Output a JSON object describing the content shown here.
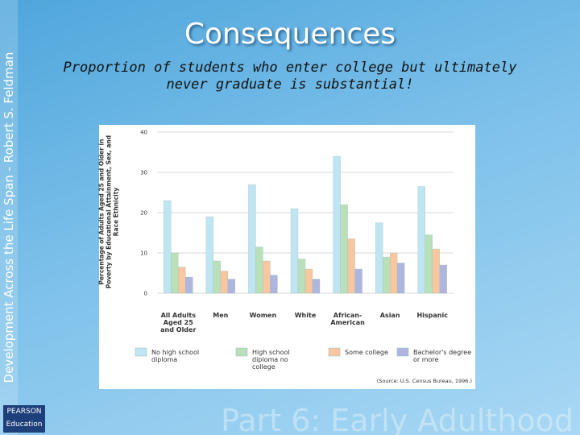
{
  "slide": {
    "title": "Consequences",
    "subtitle": "Proportion of students who enter college but ultimately never graduate is substantial!",
    "side_text": "Development Across the Life Span - Robert S. Feldman",
    "footer": "Part 6: Early Adulthood",
    "logo": [
      "PEARSON",
      "Education"
    ]
  },
  "chart_data": {
    "type": "bar",
    "y_label": "Percentage of Adults Aged 25 and Older in Poverty by Educational Attainment, Sex, and Race Ethnicity",
    "categories": [
      "All Adults Aged 25 and Older",
      "Men",
      "Women",
      "White",
      "African-American",
      "Asian",
      "Hispanic"
    ],
    "series": [
      {
        "name": "No high school diploma",
        "color": "#bfe4f2",
        "values": [
          23,
          19,
          27,
          21,
          34,
          17.5,
          26.5
        ]
      },
      {
        "name": "High school diploma no college",
        "color": "#b9e0b9",
        "values": [
          10,
          8,
          11.5,
          8.5,
          22,
          9,
          14.5
        ]
      },
      {
        "name": "Some college",
        "color": "#f8c7a0",
        "values": [
          6.5,
          5.5,
          8,
          6,
          13.5,
          10,
          11
        ]
      },
      {
        "name": "Bachelor's degree or more",
        "color": "#aeb6df",
        "values": [
          4,
          3.5,
          4.5,
          3.5,
          6,
          7.5,
          7
        ]
      }
    ],
    "ylim": [
      0,
      40
    ],
    "yticks": [
      0,
      10,
      20,
      30,
      40
    ],
    "grid": true,
    "source": "(Source: U.S. Census Bureau, 1996.)"
  }
}
